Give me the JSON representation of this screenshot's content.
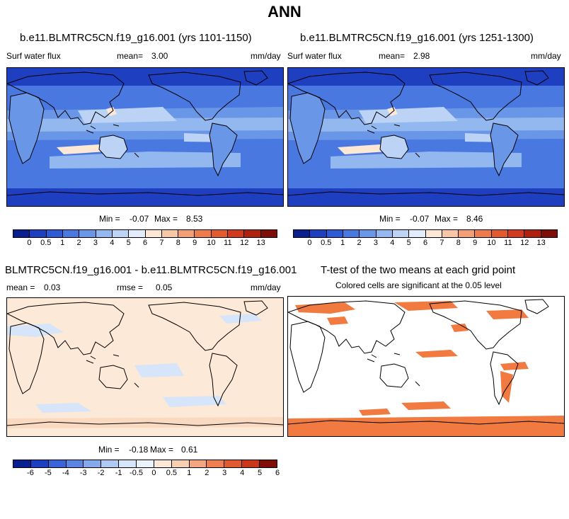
{
  "title": "ANN",
  "panels": [
    {
      "id": "p1",
      "case": "b.e11.BLMTRC5CN.f19_g16.001 (yrs 1101-1150)",
      "variable": "Surf water flux",
      "mean_label": "mean=",
      "mean_value": "3.00",
      "units": "mm/day",
      "min_label": "Min =",
      "min_value": "-0.07",
      "max_label": "Max =",
      "max_value": "8.53"
    },
    {
      "id": "p2",
      "case": "b.e11.BLMTRC5CN.f19_g16.001 (yrs 1251-1300)",
      "variable": "Surf water flux",
      "mean_label": "mean=",
      "mean_value": "2.98",
      "units": "mm/day",
      "min_label": "Min =",
      "min_value": "-0.07",
      "max_label": "Max =",
      "max_value": "8.46"
    },
    {
      "id": "p3",
      "case": "BLMTRC5CN.f19_g16.001 - b.e11.BLMTRC5CN.f19_g16.001",
      "mean_label": "mean =",
      "mean_value": "0.03",
      "rmse_label": "rmse =",
      "rmse_value": "0.05",
      "units": "mm/day",
      "min_label": "Min =",
      "min_value": "-0.18",
      "max_label": "Max =",
      "max_value": "0.61"
    },
    {
      "id": "p4",
      "case": "T-test of the two means at each grid point",
      "note": "Colored cells are significant at the 0.05 level"
    }
  ],
  "colorbar_abs": {
    "colors": [
      "#0a1f8f",
      "#1f3fc1",
      "#2f5ad6",
      "#4878e0",
      "#6a96e8",
      "#93b7ef",
      "#bcd3f5",
      "#e2ecfa",
      "#fde7d5",
      "#f7c6a4",
      "#f39f75",
      "#ee7b4e",
      "#e5592f",
      "#d13a1e",
      "#b0200f",
      "#7f0c06"
    ],
    "labels": [
      "0",
      "0.5",
      "1",
      "2",
      "3",
      "4",
      "5",
      "6",
      "7",
      "8",
      "9",
      "10",
      "11",
      "12",
      "13"
    ]
  },
  "colorbar_diff": {
    "colors": [
      "#0a1f8f",
      "#1f3fc1",
      "#3a63d8",
      "#5c85e3",
      "#86a9ec",
      "#b0c9f3",
      "#d6e5f9",
      "#eaf2fc",
      "#fde9d8",
      "#f9cfb2",
      "#f4a680",
      "#ee7f53",
      "#e25a30",
      "#c8371c",
      "#7f0c06"
    ],
    "labels": [
      "-6",
      "-5",
      "-4",
      "-3",
      "-2",
      "-1",
      "-0.5",
      "0",
      "0.5",
      "1",
      "2",
      "3",
      "4",
      "5",
      "6"
    ]
  }
}
